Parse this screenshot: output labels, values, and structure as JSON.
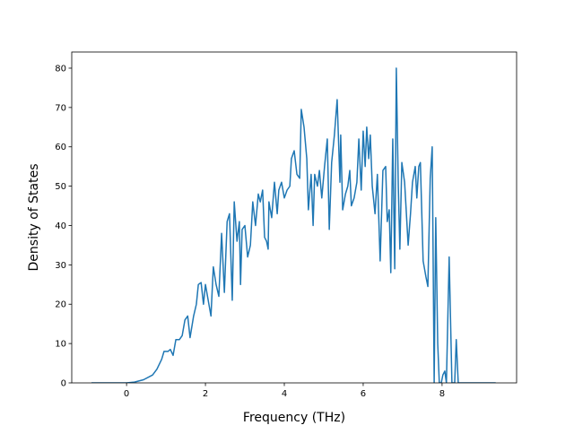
{
  "chart_data": {
    "type": "line",
    "x_label": "Frequency (THz)",
    "y_label": "Density of States",
    "x": [
      -0.89,
      0,
      0.2,
      0.43,
      0.66,
      0.77,
      0.89,
      0.95,
      1.05,
      1.11,
      1.18,
      1.25,
      1.34,
      1.41,
      1.48,
      1.55,
      1.61,
      1.7,
      1.77,
      1.82,
      1.89,
      1.95,
      2.0,
      2.07,
      2.14,
      2.2,
      2.27,
      2.34,
      2.41,
      2.48,
      2.55,
      2.61,
      2.68,
      2.73,
      2.8,
      2.86,
      2.89,
      2.93,
      3.0,
      3.07,
      3.14,
      3.2,
      3.27,
      3.34,
      3.39,
      3.45,
      3.5,
      3.55,
      3.59,
      3.61,
      3.68,
      3.75,
      3.82,
      3.86,
      3.93,
      4.0,
      4.07,
      4.14,
      4.18,
      4.25,
      4.32,
      4.39,
      4.43,
      4.5,
      4.57,
      4.61,
      4.68,
      4.73,
      4.77,
      4.84,
      4.89,
      4.95,
      5.02,
      5.09,
      5.14,
      5.2,
      5.27,
      5.34,
      5.41,
      5.43,
      5.48,
      5.55,
      5.61,
      5.66,
      5.7,
      5.77,
      5.84,
      5.89,
      5.95,
      6.0,
      6.05,
      6.09,
      6.14,
      6.18,
      6.23,
      6.3,
      6.36,
      6.43,
      6.5,
      6.57,
      6.61,
      6.66,
      6.7,
      6.75,
      6.8,
      6.84,
      6.89,
      6.93,
      6.98,
      7.05,
      7.09,
      7.14,
      7.2,
      7.25,
      7.32,
      7.36,
      7.41,
      7.45,
      7.52,
      7.59,
      7.64,
      7.7,
      7.75,
      7.8,
      7.84,
      7.89,
      7.93,
      7.98,
      8.02,
      8.07,
      8.11,
      8.18,
      8.25,
      8.32,
      8.36,
      8.41,
      8.45,
      9.36
    ],
    "series": [
      {
        "color": "#1f77b4",
        "values": [
          0,
          0,
          0.2,
          0.8,
          2,
          3.5,
          6,
          8,
          8,
          8.5,
          7,
          11,
          11,
          12,
          16,
          17,
          11.5,
          17,
          20,
          25,
          25.5,
          20,
          25,
          21,
          17,
          29.5,
          25,
          22,
          38,
          23,
          41,
          43,
          21,
          46,
          36,
          41,
          25,
          39,
          40,
          32,
          35,
          46,
          40,
          48,
          46,
          49,
          37,
          36,
          34,
          46,
          42,
          51,
          43,
          49,
          51,
          47,
          49,
          50,
          57,
          59,
          53,
          52,
          69.5,
          65,
          57,
          44,
          53,
          40,
          53,
          50,
          54,
          47,
          55,
          62,
          39,
          56,
          63,
          72,
          51,
          63,
          44,
          48,
          50,
          54,
          45,
          47,
          51,
          62,
          49,
          64,
          55,
          65,
          57,
          63,
          50,
          43,
          53,
          31,
          54,
          55,
          41,
          44,
          28,
          62,
          29,
          80,
          50,
          34,
          56,
          51,
          44,
          35,
          43,
          51,
          55,
          47,
          55,
          56,
          31,
          27,
          24.5,
          52,
          60,
          0,
          42,
          10,
          0,
          0,
          2,
          3,
          0,
          32,
          0,
          0,
          11,
          0,
          0,
          0
        ]
      }
    ],
    "xlim": [
      -1.39,
      9.89
    ],
    "ylim": [
      0,
      84.1
    ],
    "xticks": [
      0,
      2,
      4,
      6,
      8
    ],
    "yticks": [
      0,
      10,
      20,
      30,
      40,
      50,
      60,
      70,
      80
    ]
  }
}
